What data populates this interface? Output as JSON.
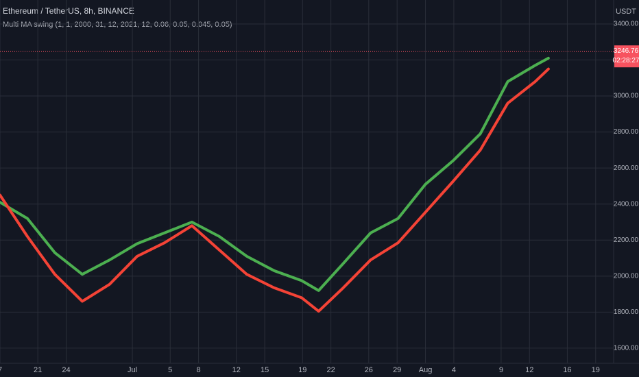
{
  "chart_data": {
    "type": "line",
    "title": "Ethereum / TetherUS, 8h, BINANCE",
    "subtitle": "Multi MA swing (1, 1, 2000, 31, 12, 2021, 12, 0.06, 0.05, 0.045, 0.05)",
    "currency": "USDT",
    "last_price": {
      "value": 3246.76,
      "label": "3246.76",
      "countdown": "02:28:27",
      "color": "#f7525f"
    },
    "xlim": [
      17,
      81.9
    ],
    "xticks": [
      {
        "value": 17,
        "label": "7"
      },
      {
        "value": 21,
        "label": "21"
      },
      {
        "value": 24,
        "label": "24"
      },
      {
        "value": 31,
        "label": "Jul"
      },
      {
        "value": 35,
        "label": "5"
      },
      {
        "value": 38,
        "label": "8"
      },
      {
        "value": 42,
        "label": "12"
      },
      {
        "value": 45,
        "label": "15"
      },
      {
        "value": 49,
        "label": "19"
      },
      {
        "value": 52,
        "label": "22"
      },
      {
        "value": 56,
        "label": "26"
      },
      {
        "value": 59,
        "label": "29"
      },
      {
        "value": 62,
        "label": "Aug"
      },
      {
        "value": 65,
        "label": "4"
      },
      {
        "value": 70,
        "label": "9"
      },
      {
        "value": 73,
        "label": "12"
      },
      {
        "value": 77,
        "label": "16"
      },
      {
        "value": 80,
        "label": "19"
      }
    ],
    "ylim": [
      1516,
      3533
    ],
    "yticks": [
      {
        "value": 1600,
        "label": "1600.00"
      },
      {
        "value": 1800,
        "label": "1800.00"
      },
      {
        "value": 2000,
        "label": "2000.00"
      },
      {
        "value": 2200,
        "label": "2200.00"
      },
      {
        "value": 2400,
        "label": "2400.00"
      },
      {
        "value": 2600,
        "label": "2600.00"
      },
      {
        "value": 2800,
        "label": "2800.00"
      },
      {
        "value": 3000,
        "label": "3000.00"
      },
      {
        "value": 3200,
        "label": "3200.00"
      },
      {
        "value": 3400,
        "label": "3400.00"
      }
    ],
    "grid": true,
    "x": [
      17,
      19.9,
      22.8,
      25.7,
      28.6,
      31.5,
      34.4,
      37.3,
      40.2,
      43.1,
      46,
      48.9,
      50.7,
      53.3,
      56.2,
      59.1,
      62,
      64.9,
      67.8,
      70.7,
      73.6,
      75
    ],
    "series": [
      {
        "color": "#4caf50",
        "values": [
          2410,
          2320,
          2130,
          2010,
          2090,
          2180,
          2240,
          2300,
          2220,
          2110,
          2030,
          1975,
          1920,
          2070,
          2240,
          2320,
          2510,
          2640,
          2790,
          3080,
          3170,
          3210
        ]
      },
      {
        "color": "#f44336",
        "values": [
          2450,
          2220,
          2010,
          1860,
          1955,
          2110,
          2185,
          2280,
          2145,
          2010,
          1935,
          1880,
          1805,
          1935,
          2090,
          2185,
          2355,
          2525,
          2700,
          2960,
          3080,
          3150
        ]
      }
    ]
  }
}
